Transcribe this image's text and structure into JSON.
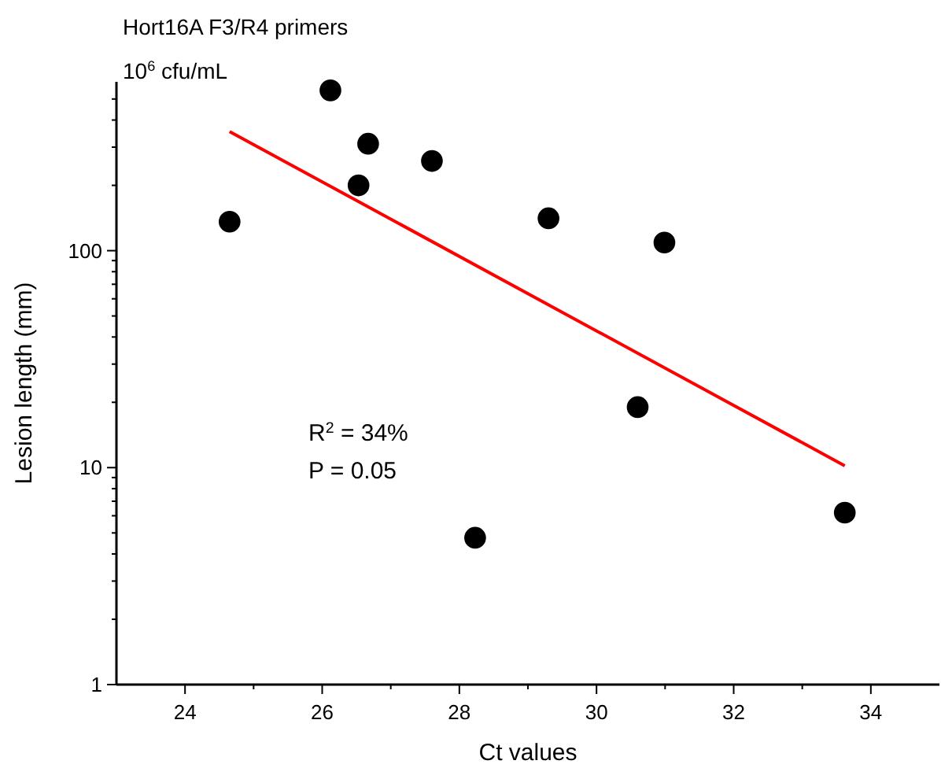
{
  "chart_data": {
    "type": "scatter",
    "title": "Hort16A F3/R4 primers",
    "subtitle": "10$^{6}$ cfu/mL",
    "xlabel": "Ct values",
    "ylabel": "Lesion length (mm)",
    "annotations": [
      "R$^{2}$ = 34%",
      "P = 0.05"
    ],
    "log": "y",
    "grid": false,
    "marker": "circle",
    "xlim": [
      23,
      35
    ],
    "ylim": [
      1,
      600
    ],
    "xticks": [
      24,
      {
        "value": 25,
        "label": null
      },
      26,
      {
        "value": 27,
        "label": null
      },
      28,
      {
        "value": 29,
        "label": null
      },
      30,
      {
        "value": 31,
        "label": null
      },
      32,
      {
        "value": 33,
        "label": null
      },
      34
    ],
    "yticks": [
      1,
      {
        "value": 2,
        "label": null
      },
      {
        "value": 3,
        "label": null
      },
      {
        "value": 4,
        "label": null
      },
      {
        "value": 5,
        "label": null
      },
      {
        "value": 6,
        "label": null
      },
      {
        "value": 7,
        "label": null
      },
      {
        "value": 8,
        "label": null
      },
      {
        "value": 9,
        "label": null
      },
      10,
      {
        "value": 20,
        "label": null
      },
      {
        "value": 30,
        "label": null
      },
      {
        "value": 40,
        "label": null
      },
      {
        "value": 50,
        "label": null
      },
      {
        "value": 60,
        "label": null
      },
      {
        "value": 70,
        "label": null
      },
      {
        "value": 80,
        "label": null
      },
      {
        "value": 90,
        "label": null
      },
      100,
      {
        "value": 200,
        "label": null
      },
      {
        "value": 300,
        "label": null
      },
      {
        "value": 400,
        "label": null
      },
      {
        "value": 500,
        "label": null
      }
    ],
    "series": [
      {
        "color": "#000000",
        "x": [
          24.65,
          26.12,
          26.67,
          26.53,
          27.6,
          29.3,
          30.99,
          30.6,
          28.23,
          33.62
        ],
        "values": [
          136,
          548,
          311,
          200,
          259,
          141,
          109,
          19,
          4.75,
          6.2
        ]
      },
      {
        "type": "line",
        "color": "#ff0000",
        "marker": "none",
        "line_style": "solid",
        "x": [
          24.65,
          33.62
        ],
        "values": [
          354,
          10.2
        ]
      }
    ]
  }
}
